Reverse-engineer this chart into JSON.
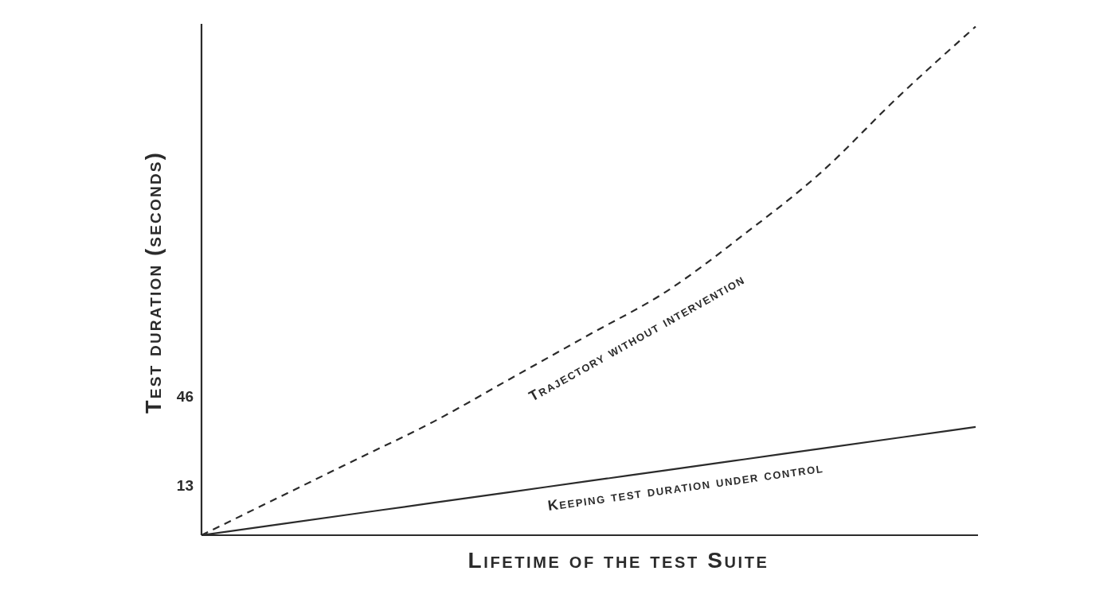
{
  "chart_data": {
    "type": "line",
    "xlabel": "Lifetime of the test Suite",
    "ylabel": "Test duration (seconds)",
    "categories": [
      null,
      null,
      null,
      null,
      null,
      null,
      null,
      null,
      null,
      null,
      null
    ],
    "series": [
      {
        "name": "Trajectory without intervention",
        "color": "#2b2b2b",
        "line_style": "dashed",
        "values": [
          -5,
          9,
          23,
          37,
          53,
          69,
          85,
          106,
          129,
          157,
          183
        ]
      },
      {
        "name": "Keeping test duration under control",
        "color": "#2b2b2b",
        "line_style": "solid",
        "values": [
          -5,
          -1,
          3,
          7,
          11,
          15,
          19,
          23,
          27,
          31,
          35
        ]
      }
    ],
    "ylim": [
      -5,
      184
    ],
    "yticks": [
      13,
      46
    ],
    "tick_labels": "y"
  }
}
